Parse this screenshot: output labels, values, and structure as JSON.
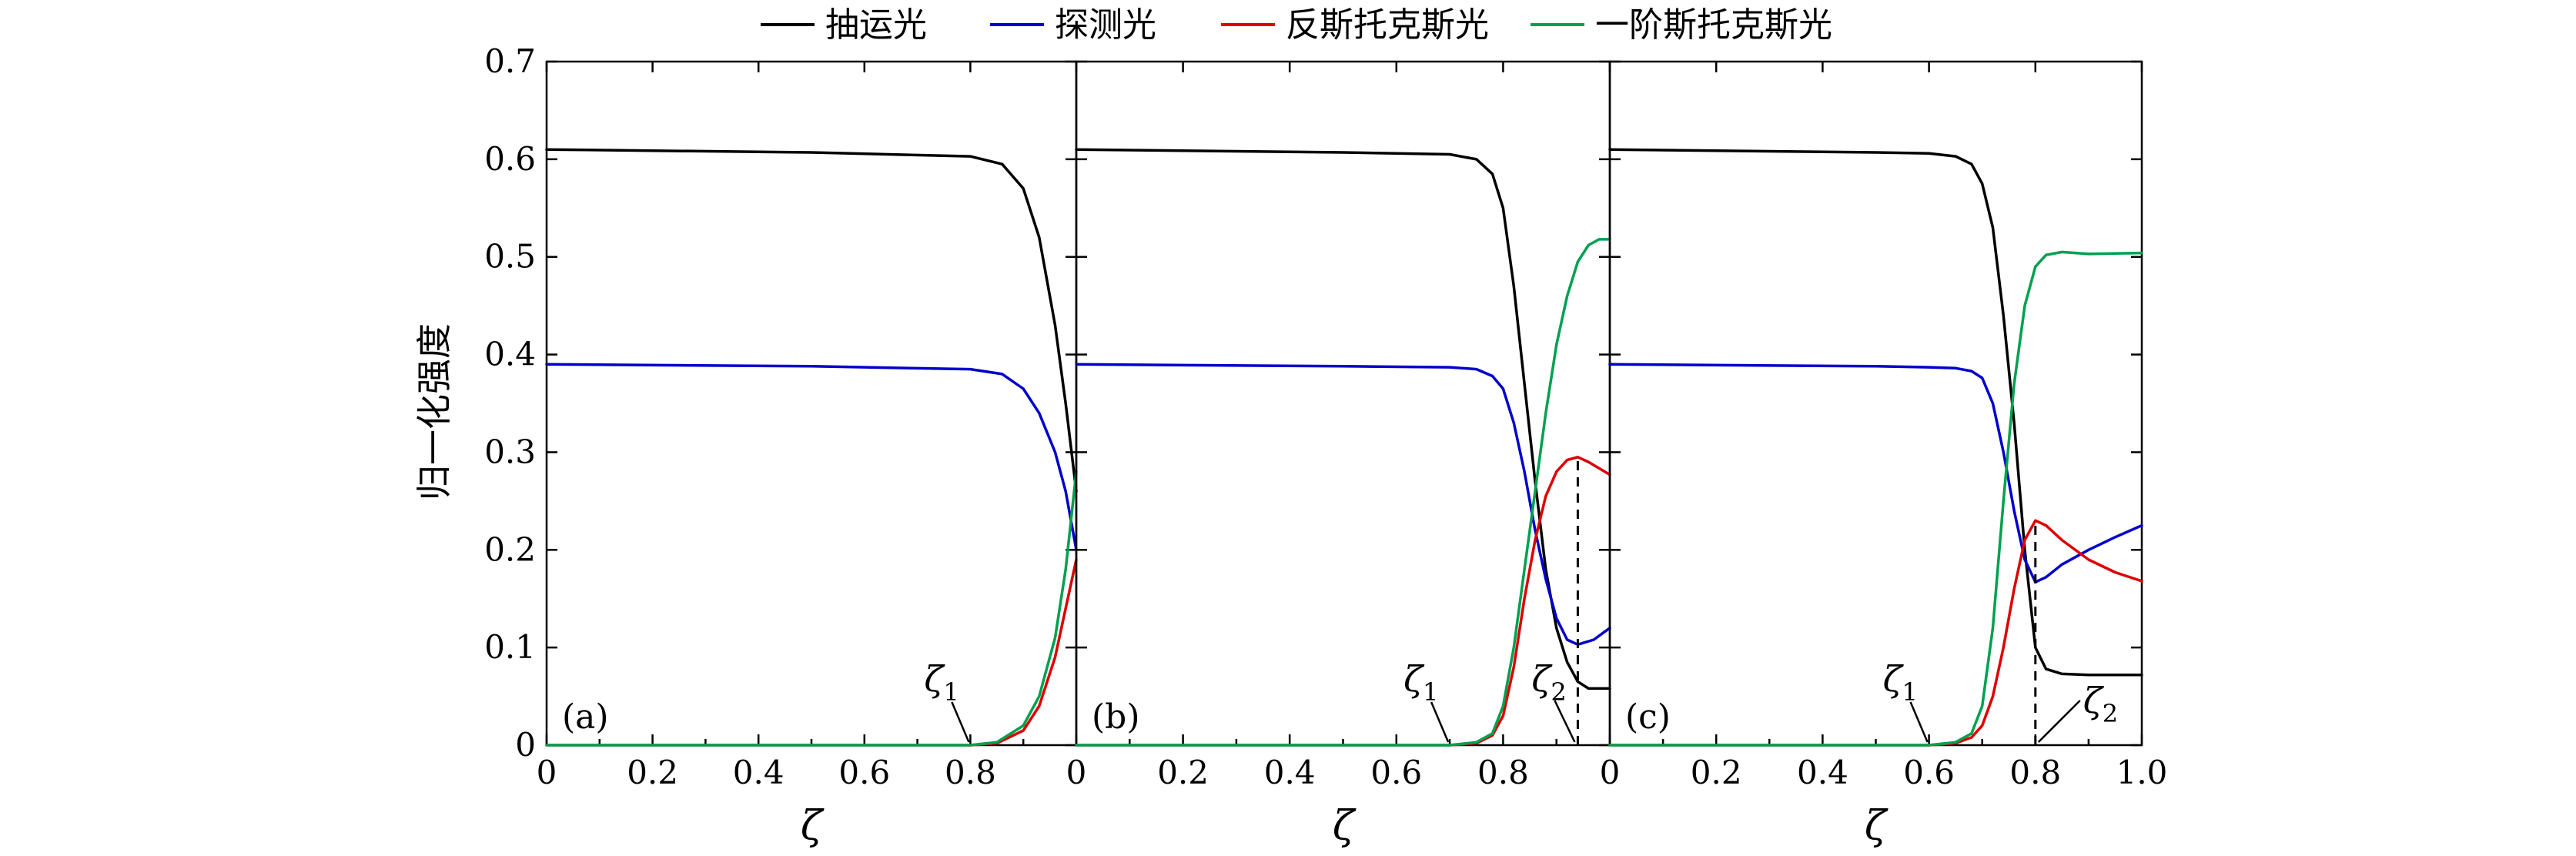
{
  "legend": {
    "items": [
      {
        "name": "抽运光",
        "color": "#000000"
      },
      {
        "name": "探测光",
        "color": "#0000cc"
      },
      {
        "name": "反斯托克斯光",
        "color": "#dd0000"
      },
      {
        "name": "一阶斯托克斯光",
        "color": "#00a050"
      }
    ]
  },
  "axes": {
    "ylabel": "归一化强度",
    "xlabel": "ζ",
    "yticks": [
      "0",
      "0.1",
      "0.2",
      "0.3",
      "0.4",
      "0.5",
      "0.6",
      "0.7"
    ],
    "panel_xticks": [
      [
        "0",
        "0.2",
        "0.4",
        "0.6",
        "0.8"
      ],
      [
        "0",
        "0.2",
        "0.4",
        "0.6",
        "0.8"
      ],
      [
        "0",
        "0.2",
        "0.4",
        "0.6",
        "0.8",
        "1.0"
      ]
    ]
  },
  "chart_data": [
    {
      "type": "line",
      "panel": "(a)",
      "xlim": [
        0,
        1
      ],
      "ylim": [
        0,
        0.7
      ],
      "xlabel": "ζ",
      "ylabel": "归一化强度",
      "annotations": [
        {
          "text": "ζ",
          "sub": "1",
          "x": 0.8
        }
      ],
      "series": [
        {
          "name": "抽运光",
          "color": "#000000",
          "points": [
            [
              0,
              0.61
            ],
            [
              0.5,
              0.607
            ],
            [
              0.8,
              0.603
            ],
            [
              0.86,
              0.595
            ],
            [
              0.9,
              0.57
            ],
            [
              0.93,
              0.52
            ],
            [
              0.96,
              0.43
            ],
            [
              0.98,
              0.35
            ],
            [
              1.0,
              0.26
            ]
          ]
        },
        {
          "name": "探测光",
          "color": "#0000cc",
          "points": [
            [
              0,
              0.39
            ],
            [
              0.5,
              0.388
            ],
            [
              0.8,
              0.385
            ],
            [
              0.86,
              0.38
            ],
            [
              0.9,
              0.365
            ],
            [
              0.93,
              0.34
            ],
            [
              0.96,
              0.3
            ],
            [
              0.98,
              0.26
            ],
            [
              1.0,
              0.2
            ]
          ]
        },
        {
          "name": "反斯托克斯光",
          "color": "#dd0000",
          "points": [
            [
              0,
              0
            ],
            [
              0.8,
              0
            ],
            [
              0.85,
              0.002
            ],
            [
              0.9,
              0.015
            ],
            [
              0.93,
              0.04
            ],
            [
              0.96,
              0.09
            ],
            [
              0.98,
              0.14
            ],
            [
              1.0,
              0.19
            ]
          ]
        },
        {
          "name": "一阶斯托克斯光",
          "color": "#00a050",
          "points": [
            [
              0,
              0
            ],
            [
              0.8,
              0
            ],
            [
              0.85,
              0.003
            ],
            [
              0.9,
              0.02
            ],
            [
              0.93,
              0.05
            ],
            [
              0.96,
              0.11
            ],
            [
              0.98,
              0.18
            ],
            [
              1.0,
              0.28
            ]
          ]
        }
      ]
    },
    {
      "type": "line",
      "panel": "(b)",
      "xlim": [
        0,
        1
      ],
      "ylim": [
        0,
        0.7
      ],
      "xlabel": "ζ",
      "ylabel": "归一化强度",
      "annotations": [
        {
          "text": "ζ",
          "sub": "1",
          "x": 0.7
        },
        {
          "text": "ζ",
          "sub": "2",
          "x": 0.94
        }
      ],
      "series": [
        {
          "name": "抽运光",
          "color": "#000000",
          "points": [
            [
              0,
              0.61
            ],
            [
              0.5,
              0.607
            ],
            [
              0.7,
              0.605
            ],
            [
              0.75,
              0.6
            ],
            [
              0.78,
              0.585
            ],
            [
              0.8,
              0.55
            ],
            [
              0.82,
              0.47
            ],
            [
              0.84,
              0.37
            ],
            [
              0.86,
              0.27
            ],
            [
              0.88,
              0.18
            ],
            [
              0.9,
              0.12
            ],
            [
              0.92,
              0.085
            ],
            [
              0.94,
              0.065
            ],
            [
              0.96,
              0.058
            ],
            [
              1.0,
              0.058
            ]
          ]
        },
        {
          "name": "探测光",
          "color": "#0000cc",
          "points": [
            [
              0,
              0.39
            ],
            [
              0.5,
              0.388
            ],
            [
              0.7,
              0.387
            ],
            [
              0.75,
              0.385
            ],
            [
              0.78,
              0.378
            ],
            [
              0.8,
              0.365
            ],
            [
              0.82,
              0.33
            ],
            [
              0.84,
              0.28
            ],
            [
              0.86,
              0.22
            ],
            [
              0.88,
              0.17
            ],
            [
              0.9,
              0.13
            ],
            [
              0.92,
              0.108
            ],
            [
              0.94,
              0.103
            ],
            [
              0.97,
              0.108
            ],
            [
              1.0,
              0.12
            ]
          ]
        },
        {
          "name": "反斯托克斯光",
          "color": "#dd0000",
          "points": [
            [
              0,
              0
            ],
            [
              0.7,
              0
            ],
            [
              0.75,
              0.002
            ],
            [
              0.78,
              0.01
            ],
            [
              0.8,
              0.03
            ],
            [
              0.82,
              0.08
            ],
            [
              0.84,
              0.15
            ],
            [
              0.86,
              0.21
            ],
            [
              0.88,
              0.255
            ],
            [
              0.9,
              0.28
            ],
            [
              0.92,
              0.292
            ],
            [
              0.94,
              0.295
            ],
            [
              0.96,
              0.29
            ],
            [
              1.0,
              0.277
            ]
          ]
        },
        {
          "name": "一阶斯托克斯光",
          "color": "#00a050",
          "points": [
            [
              0,
              0
            ],
            [
              0.7,
              0
            ],
            [
              0.75,
              0.003
            ],
            [
              0.78,
              0.012
            ],
            [
              0.8,
              0.04
            ],
            [
              0.82,
              0.1
            ],
            [
              0.84,
              0.18
            ],
            [
              0.86,
              0.26
            ],
            [
              0.88,
              0.34
            ],
            [
              0.9,
              0.41
            ],
            [
              0.92,
              0.46
            ],
            [
              0.94,
              0.495
            ],
            [
              0.96,
              0.512
            ],
            [
              0.98,
              0.518
            ],
            [
              1.0,
              0.518
            ]
          ]
        }
      ]
    },
    {
      "type": "line",
      "panel": "(c)",
      "xlim": [
        0,
        1
      ],
      "ylim": [
        0,
        0.7
      ],
      "xlabel": "ζ",
      "ylabel": "归一化强度",
      "annotations": [
        {
          "text": "ζ",
          "sub": "1",
          "x": 0.6
        },
        {
          "text": "ζ",
          "sub": "2",
          "x": 0.8
        }
      ],
      "series": [
        {
          "name": "抽运光",
          "color": "#000000",
          "points": [
            [
              0,
              0.61
            ],
            [
              0.5,
              0.607
            ],
            [
              0.6,
              0.606
            ],
            [
              0.65,
              0.603
            ],
            [
              0.68,
              0.595
            ],
            [
              0.7,
              0.575
            ],
            [
              0.72,
              0.53
            ],
            [
              0.74,
              0.44
            ],
            [
              0.76,
              0.33
            ],
            [
              0.78,
              0.2
            ],
            [
              0.8,
              0.1
            ],
            [
              0.82,
              0.078
            ],
            [
              0.85,
              0.073
            ],
            [
              0.9,
              0.072
            ],
            [
              1.0,
              0.072
            ]
          ]
        },
        {
          "name": "探测光",
          "color": "#0000cc",
          "points": [
            [
              0,
              0.39
            ],
            [
              0.5,
              0.388
            ],
            [
              0.6,
              0.387
            ],
            [
              0.65,
              0.386
            ],
            [
              0.68,
              0.383
            ],
            [
              0.7,
              0.376
            ],
            [
              0.72,
              0.35
            ],
            [
              0.74,
              0.3
            ],
            [
              0.76,
              0.24
            ],
            [
              0.78,
              0.19
            ],
            [
              0.8,
              0.167
            ],
            [
              0.82,
              0.172
            ],
            [
              0.85,
              0.185
            ],
            [
              0.9,
              0.2
            ],
            [
              0.95,
              0.213
            ],
            [
              1.0,
              0.225
            ]
          ]
        },
        {
          "name": "反斯托克斯光",
          "color": "#dd0000",
          "points": [
            [
              0,
              0
            ],
            [
              0.6,
              0
            ],
            [
              0.65,
              0.002
            ],
            [
              0.68,
              0.008
            ],
            [
              0.7,
              0.02
            ],
            [
              0.72,
              0.05
            ],
            [
              0.74,
              0.1
            ],
            [
              0.76,
              0.16
            ],
            [
              0.78,
              0.21
            ],
            [
              0.8,
              0.23
            ],
            [
              0.82,
              0.225
            ],
            [
              0.85,
              0.21
            ],
            [
              0.9,
              0.19
            ],
            [
              0.95,
              0.177
            ],
            [
              1.0,
              0.168
            ]
          ]
        },
        {
          "name": "一阶斯托克斯光",
          "color": "#00a050",
          "points": [
            [
              0,
              0
            ],
            [
              0.6,
              0
            ],
            [
              0.65,
              0.003
            ],
            [
              0.68,
              0.012
            ],
            [
              0.7,
              0.04
            ],
            [
              0.72,
              0.12
            ],
            [
              0.74,
              0.25
            ],
            [
              0.76,
              0.37
            ],
            [
              0.78,
              0.45
            ],
            [
              0.8,
              0.49
            ],
            [
              0.82,
              0.502
            ],
            [
              0.85,
              0.505
            ],
            [
              0.9,
              0.503
            ],
            [
              1.0,
              0.504
            ]
          ]
        }
      ]
    }
  ]
}
